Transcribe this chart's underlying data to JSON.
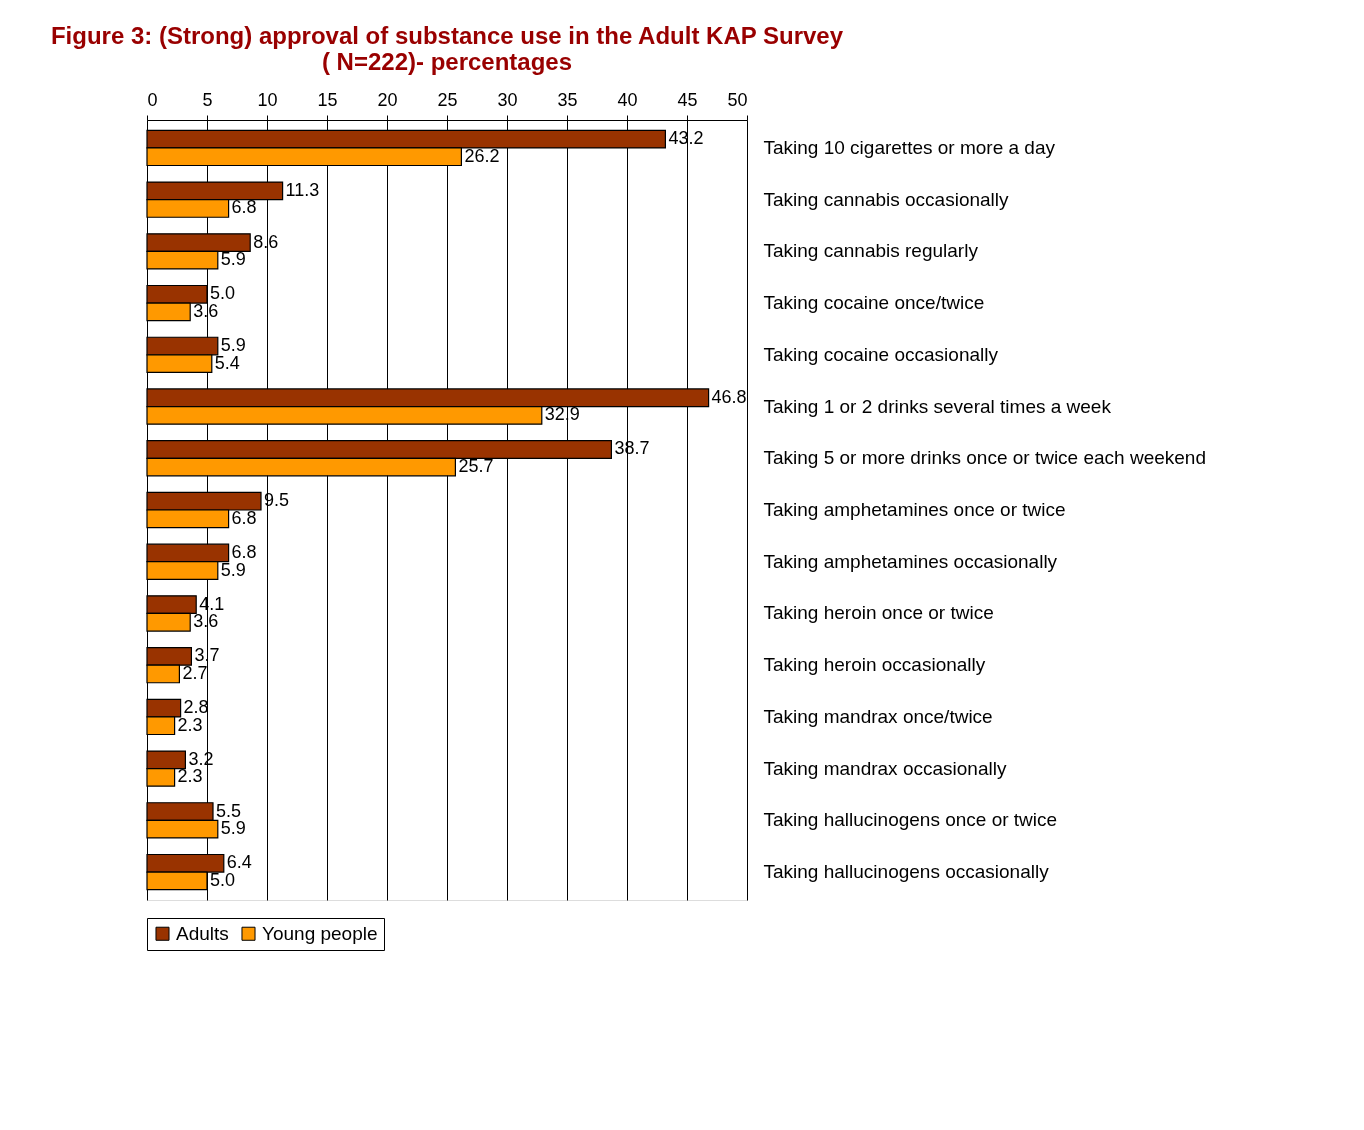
{
  "chart_data": {
    "type": "bar",
    "orientation": "horizontal",
    "title": "Figure 3: (Strong) approval of substance use in the Adult KAP Survey\n( N=222)- percentages",
    "categories": [
      "Taking 10 cigarettes or more a day",
      "Taking cannabis occasionally",
      "Taking cannabis regularly",
      "Taking cocaine once/twice",
      "Taking cocaine occasionally",
      "Taking 1 or 2 drinks several times a week",
      "Taking 5 or more drinks once or twice each weekend",
      "Taking amphetamines once or twice",
      "Taking amphetamines occasionally",
      "Taking heroin once or twice",
      "Taking heroin occasionally",
      "Taking mandrax once/twice",
      "Taking mandrax occasionally",
      "Taking hallucinogens once or twice",
      "Taking hallucinogens occasionally"
    ],
    "series": [
      {
        "name": "Adults",
        "color": "#993300",
        "values": [
          43.2,
          11.3,
          8.6,
          5.0,
          5.9,
          46.8,
          38.7,
          9.5,
          6.8,
          4.1,
          3.7,
          2.8,
          3.2,
          5.5,
          6.4
        ],
        "value_labels": [
          "43.2",
          "11.3",
          "8.6",
          "5.0",
          "5.9",
          "46.8",
          "38.7",
          "9.5",
          "6.8",
          "4.1",
          "3.7",
          "2.8",
          "3.2",
          "5.5",
          "6.4"
        ]
      },
      {
        "name": "Young people",
        "color": "#ff9900",
        "values": [
          26.2,
          6.8,
          5.9,
          3.6,
          5.4,
          32.9,
          25.7,
          6.8,
          5.9,
          3.6,
          2.7,
          2.3,
          2.3,
          5.9,
          5.0
        ],
        "value_labels": [
          "26.2",
          "6.8",
          "5.9",
          "3.6",
          "5.4",
          "32.9",
          "25.7",
          "6.8",
          "5.9",
          "3.6",
          "2.7",
          "2.3",
          "2.3",
          "5.9",
          "5.0"
        ]
      }
    ],
    "xlim": [
      0,
      50
    ],
    "xticks": [
      0,
      5,
      10,
      15,
      20,
      25,
      30,
      35,
      40,
      45,
      50
    ],
    "grid": "x",
    "legend": "bottom"
  }
}
